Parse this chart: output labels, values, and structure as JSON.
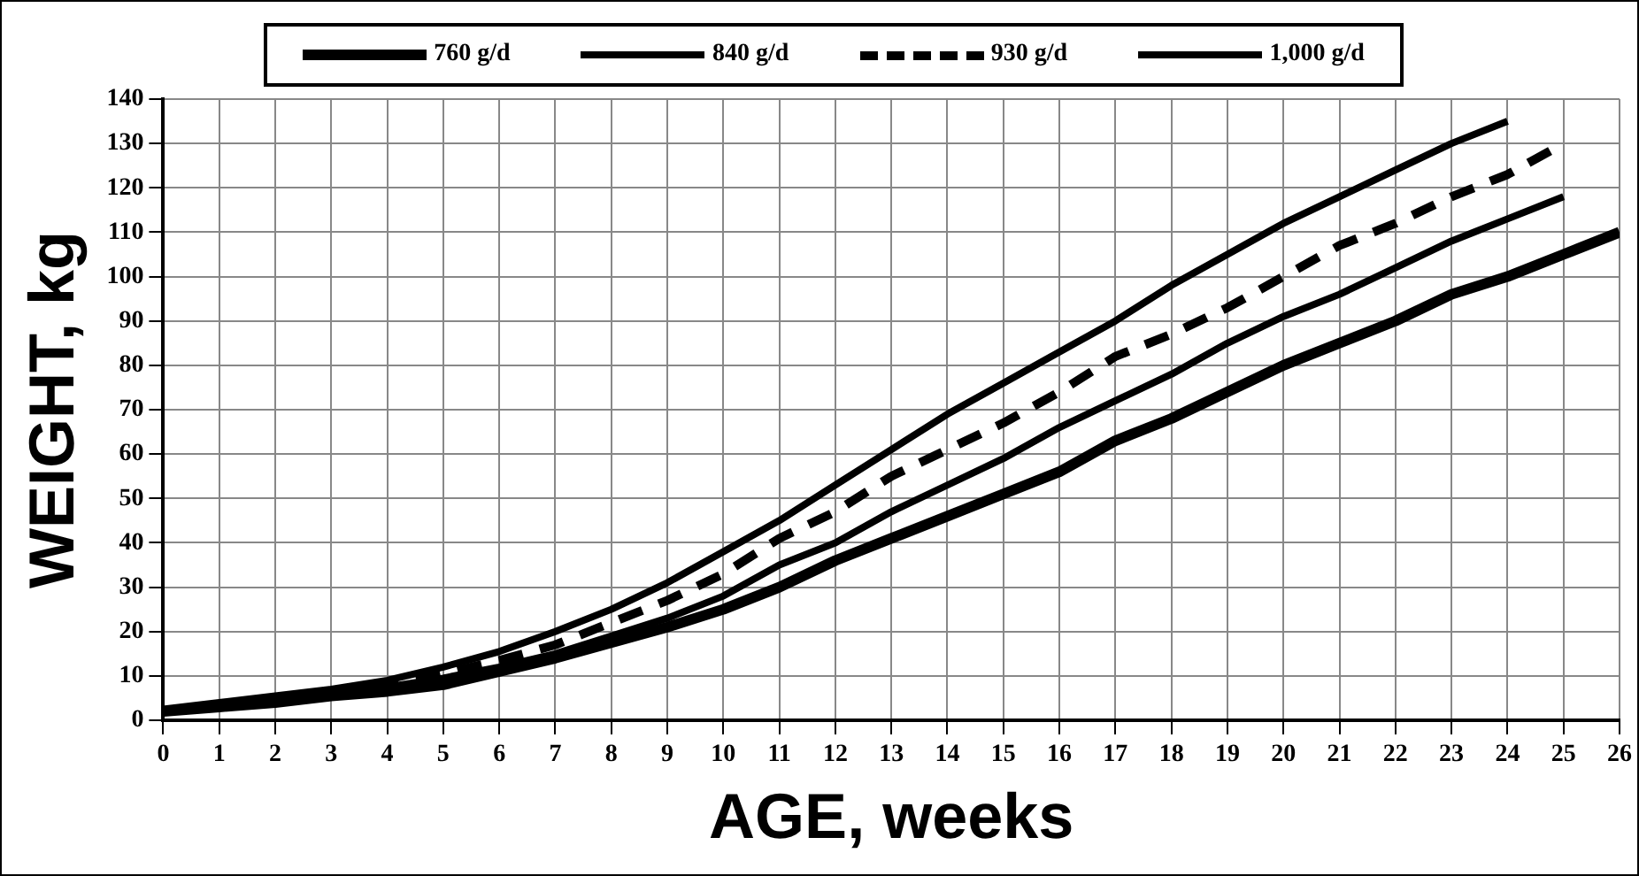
{
  "chart_data": {
    "type": "line",
    "xlabel": "AGE, weeks",
    "ylabel": "WEIGHT, kg",
    "xlim": [
      0,
      26
    ],
    "xticks": [
      0,
      1,
      2,
      3,
      4,
      5,
      6,
      7,
      8,
      9,
      10,
      11,
      12,
      13,
      14,
      15,
      16,
      17,
      18,
      19,
      20,
      21,
      22,
      23,
      24,
      25,
      26
    ],
    "ylim": [
      0,
      140
    ],
    "yticks": [
      0,
      10,
      20,
      30,
      40,
      50,
      60,
      70,
      80,
      90,
      100,
      110,
      120,
      130,
      140
    ],
    "grid": true,
    "legend": "top",
    "marker": "none",
    "x": [
      0,
      1,
      2,
      3,
      4,
      5,
      6,
      7,
      8,
      9,
      10,
      11,
      12,
      13,
      14,
      15,
      16,
      17,
      18,
      19,
      20,
      21,
      22,
      23,
      24,
      25,
      26
    ],
    "series": [
      {
        "name": "760 g/d",
        "color": "#000000",
        "line_style": "solid",
        "values": [
          2,
          3,
          4,
          5.5,
          6.5,
          8,
          11,
          14,
          17.5,
          21,
          25,
          30,
          36,
          41,
          46,
          51,
          56,
          63,
          68,
          74,
          80,
          85,
          90,
          96,
          100,
          105,
          110
        ]
      },
      {
        "name": "840 g/d",
        "color": "#000000",
        "line_style": "solid",
        "values": [
          2,
          3.5,
          4.5,
          6,
          7.5,
          9.5,
          12,
          15,
          19,
          23,
          28,
          35,
          40,
          47,
          53,
          59,
          66,
          72,
          78,
          85,
          91,
          96,
          102,
          108,
          113,
          118,
          null
        ]
      },
      {
        "name": "930 g/d",
        "color": "#000000",
        "line_style": "dashed",
        "values": [
          2,
          3.5,
          5,
          6.5,
          8,
          10.5,
          13.5,
          17,
          22,
          27,
          33,
          41,
          47,
          55,
          61,
          67,
          74,
          82,
          87,
          93,
          100,
          107,
          112,
          118,
          123,
          130,
          null
        ]
      },
      {
        "name": "1,000 g/d",
        "color": "#000000",
        "line_style": "solid",
        "values": [
          2.5,
          4,
          5.5,
          7,
          9,
          12,
          15.5,
          20,
          25,
          31,
          38,
          45,
          53,
          61,
          69,
          76,
          83,
          90,
          98,
          105,
          112,
          118,
          124,
          130,
          135,
          null,
          null
        ]
      }
    ]
  }
}
